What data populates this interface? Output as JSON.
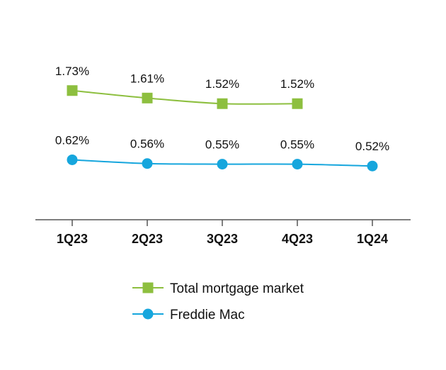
{
  "chart_data": {
    "type": "line",
    "categories": [
      "1Q23",
      "2Q23",
      "3Q23",
      "4Q23",
      "1Q24"
    ],
    "series": [
      {
        "name": "Total mortgage market",
        "values": [
          1.73,
          1.61,
          1.52,
          1.52,
          null
        ],
        "labels": [
          "1.73%",
          "1.61%",
          "1.52%",
          "1.52%",
          null
        ],
        "color": "#8dbf3f",
        "marker": "square"
      },
      {
        "name": "Freddie Mac",
        "values": [
          0.62,
          0.56,
          0.55,
          0.55,
          0.52
        ],
        "labels": [
          "0.62%",
          "0.56%",
          "0.55%",
          "0.55%",
          "0.52%"
        ],
        "color": "#16a6dd",
        "marker": "circle"
      }
    ],
    "ylim": [
      0.0,
      2.0
    ],
    "grid": false,
    "legend_position": "bottom-center",
    "title": "",
    "xlabel": "",
    "ylabel": ""
  }
}
